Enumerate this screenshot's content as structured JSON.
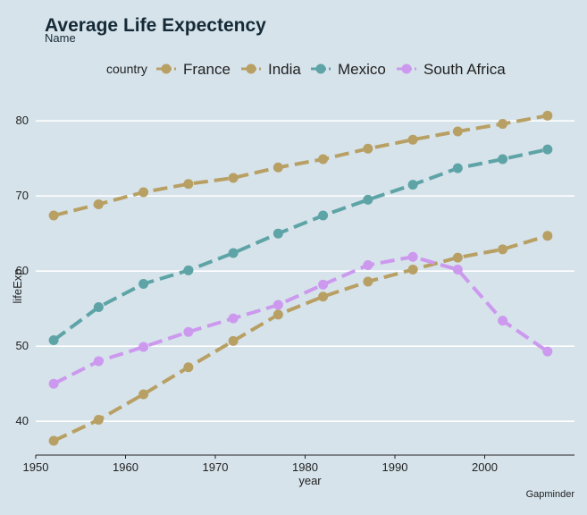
{
  "chart_data": {
    "type": "line",
    "title": "Average Life Expectency",
    "subtitle": "Name",
    "xlabel": "year",
    "ylabel": "lifeExp",
    "caption": "Gapminder",
    "legend_title": "country",
    "legend_position": "top",
    "grid": "horizontal major",
    "xlim": [
      1950,
      2010
    ],
    "ylim": [
      35.5,
      83
    ],
    "x_ticks": [
      1950,
      1960,
      1970,
      1980,
      1990,
      2000
    ],
    "y_ticks": [
      40,
      50,
      60,
      70,
      80
    ],
    "x": [
      1952,
      1957,
      1962,
      1967,
      1972,
      1977,
      1982,
      1987,
      1992,
      1997,
      2002,
      2007
    ],
    "series": [
      {
        "name": "France",
        "color": "#b8a064",
        "values": [
          67.4,
          68.9,
          70.5,
          71.6,
          72.4,
          73.8,
          74.9,
          76.3,
          77.5,
          78.6,
          79.6,
          80.7
        ]
      },
      {
        "name": "India",
        "color": "#b8a064",
        "values": [
          37.4,
          40.2,
          43.6,
          47.2,
          50.7,
          54.2,
          56.6,
          58.6,
          60.2,
          61.8,
          62.9,
          64.7
        ]
      },
      {
        "name": "Mexico",
        "color": "#5ea4a6",
        "values": [
          50.8,
          55.2,
          58.3,
          60.1,
          62.4,
          65.0,
          67.4,
          69.5,
          71.5,
          73.7,
          74.9,
          76.2
        ]
      },
      {
        "name": "South Africa",
        "color": "#cc99ee",
        "values": [
          45.0,
          48.0,
          49.9,
          51.9,
          53.7,
          55.5,
          58.2,
          60.8,
          61.9,
          60.2,
          53.4,
          49.3
        ]
      }
    ]
  }
}
